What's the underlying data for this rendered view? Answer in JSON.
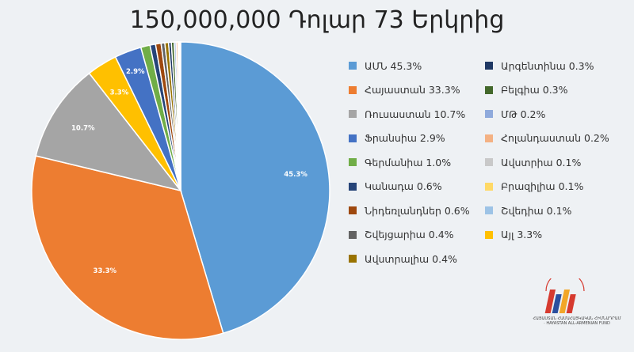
{
  "chart_data": {
    "type": "pie",
    "title": "150,000,000 Դոլար 73 Երկրից",
    "legend_placement": "right",
    "slices": [
      {
        "label": "ԱՄՆ",
        "value": 45.3,
        "color": "#5b9bd5",
        "legend_text": "ԱՄՆ  45.3%",
        "data_label": "45.3%"
      },
      {
        "label": "Հայաստան",
        "value": 33.3,
        "color": "#ed7d31",
        "legend_text": "Հայաստան 33.3%",
        "data_label": "33.3%"
      },
      {
        "label": "Ռուսաստան",
        "value": 10.7,
        "color": "#a5a5a5",
        "legend_text": "Ռուսաստան 10.7%",
        "data_label": "10.7%"
      },
      {
        "label": "Այլ",
        "value": 3.3,
        "color": "#ffc000",
        "legend_text": "Այլ  3.3%",
        "data_label": "3.3%"
      },
      {
        "label": "Ֆրանսիա",
        "value": 2.9,
        "color": "#4472c4",
        "legend_text": "Ֆրանսիա  2.9%",
        "data_label": "2.9%"
      },
      {
        "label": "Գերմանիա",
        "value": 1.0,
        "color": "#70ad47",
        "legend_text": "Գերմանիա  1.0%",
        "data_label": ""
      },
      {
        "label": "Կանադա",
        "value": 0.6,
        "color": "#264478",
        "legend_text": "Կանադա  0.6%",
        "data_label": ""
      },
      {
        "label": "Նիդեռլանդներ",
        "value": 0.6,
        "color": "#9e480e",
        "legend_text": "Նիդեռլանդներ  0.6%",
        "data_label": ""
      },
      {
        "label": "Շվեյցարիա",
        "value": 0.4,
        "color": "#636363",
        "legend_text": "Շվեյցարիա  0.4%",
        "data_label": ""
      },
      {
        "label": "Ավստրալիա",
        "value": 0.4,
        "color": "#997300",
        "legend_text": "Ավստրալիա  0.4%",
        "data_label": ""
      },
      {
        "label": "Արգենտինա",
        "value": 0.3,
        "color": "#1f3864",
        "legend_text": "Արգենտինա  0.3%",
        "data_label": ""
      },
      {
        "label": "Բելգիա",
        "value": 0.3,
        "color": "#43682b",
        "legend_text": "Բելգիա  0.3%",
        "data_label": ""
      },
      {
        "label": "ՄԹ",
        "value": 0.2,
        "color": "#8faadc",
        "legend_text": "ՄԹ 0.2%",
        "data_label": ""
      },
      {
        "label": "Հոլանդաստան",
        "value": 0.2,
        "color": "#f4b183",
        "legend_text": "Հոլանդաստան  0.2%",
        "data_label": ""
      },
      {
        "label": "Ավստրիա",
        "value": 0.1,
        "color": "#c9c9c9",
        "legend_text": "Ավստրիա  0.1%",
        "data_label": ""
      },
      {
        "label": "Բրազիլիա",
        "value": 0.1,
        "color": "#ffd966",
        "legend_text": "Բրազիլիա  0.1%",
        "data_label": ""
      },
      {
        "label": "Շվեդիա",
        "value": 0.1,
        "color": "#9dc3e6",
        "legend_text": "Շվեդիա  0.1%",
        "data_label": ""
      }
    ],
    "legend_order": [
      [
        "ԱՄՆ",
        "Հայաստան",
        "Ռուսաստան",
        "Ֆրանսիա",
        "Գերմանիա",
        "Կանադա",
        "Նիդեռլանդներ",
        "Շվեյցարիա",
        "Ավստրալիա"
      ],
      [
        "Արգենտինա",
        "Բելգիա",
        "ՄԹ",
        "Հոլանդաստան",
        "Ավստրիա",
        "Բրազիլիա",
        "Շվեդիա",
        "Այլ"
      ]
    ]
  },
  "logo": {
    "name": "logo-icon",
    "caption": "ՀԱՅԱՍՏԱՆ ՀԱՄԱՀԱՅԿԱԿԱՆ ՀԻՄՆԱԴՐԱՄ · HAYASTAN ALL-ARMENIAN FUND",
    "colors": [
      "#d63a2f",
      "#2b4f9e",
      "#f2a628"
    ]
  }
}
